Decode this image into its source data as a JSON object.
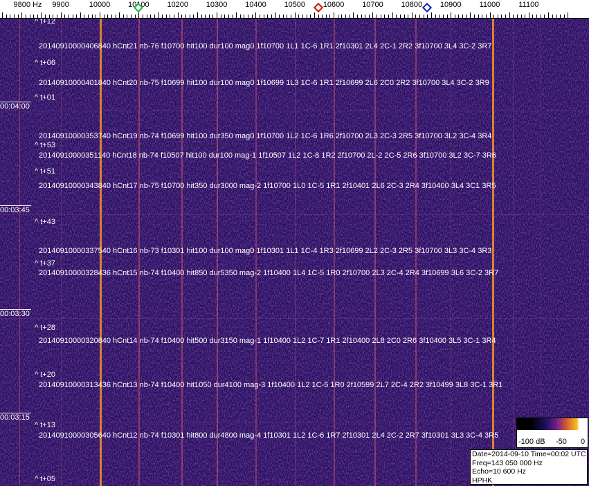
{
  "axis": {
    "unit_label": "9800 Hz",
    "ticks": [
      "9900",
      "10000",
      "10100",
      "10200",
      "10300",
      "10400",
      "10500",
      "10600",
      "10700",
      "10800",
      "10900",
      "11000",
      "11100"
    ],
    "markers": [
      {
        "freq": 10100,
        "color": "#22b14c"
      },
      {
        "freq": 10560,
        "color": "#d01010"
      },
      {
        "freq": 10840,
        "color": "#1020c0"
      }
    ]
  },
  "time_labels": [
    "00:04:00",
    "00:03:45",
    "00:03:30",
    "00:03:15"
  ],
  "t_marks": [
    "^ t+12",
    "^ t+06",
    "^ t+01",
    "^ t+53",
    "^ t+51",
    "^ t+43",
    "^ t+37",
    "^ t+28",
    "^ t+20",
    "^ t+13",
    "^ t+05"
  ],
  "events": [
    "20140910000406840 hCnt21 nb-76 f10700 hit100 dur100 mag0 1f10700 1L1 1C-6 1R1 2f10301 2L4 2C-1 2R2 3f10700 3L4 3C-2 3R7",
    "20140910000401840 hCnt20 nb-75 f10699 hit100 dur100 mag0 1f10699 1L3 1C-6 1R1 2f10699 2L6 2C0 2R2 3f10700 3L4 3C-2 3R9",
    "20140910000353740 hCnt19 nb-74 f10699 hit100 dur350 mag0 1f10700 1L2 1C-6 1R6 2f10700 2L3 2C-3 2R5 3f10700 3L2 3C-4 3R4",
    "20140910000351140 hCnt18 nb-74 f10507 hit100 dur100 mag-1 1f10507 1L2 1C-8 1R2 2f10700 2L-2 2C-5 2R6 3f10700 3L2 3C-7 3R6",
    "20140910000343840 hCnt17 nb-75 f10700 hit350 dur3000 mag-2 1f10700 1L0 1C-5 1R1 2f10401 2L6 2C-3 2R4 3f10400 3L4 3C1 3R5",
    "20140910000337540 hCnt16 nb-73 f10301 hit100 dur100 mag0 1f10301 1L1 1C-4 1R3 2f10699 2L2 2C-3 2R5 3f10700 3L3 3C-4 3R3",
    "20140910000328436 hCnt15 nb-74 f10400 hit850 dur5350 mag-2 1f10400 1L4 1C-5 1R0 2f10700 2L3 2C-4 2R4 3f10699 3L6 3C-2 3R7",
    "20140910000320840 hCnt14 nb-74 f10400 hit500 dur3150 mag-1 1f10400 1L2 1C-7 1R1 2f10400 2L8 2C0 2R6 3f10400 3L5 3C-1 3R4",
    "20140910000313436 hCnt13 nb-74 f10400 hit1050 dur4100 mag-3 1f10400 1L2 1C-5 1R0 2f10599 2L7 2C-4 2R2 3f10499 3L8 3C-1 3R1",
    "20140910000305640 hCnt12 nb-74 f10301 hit800 dur4800 mag-4 1f10301 1L2 1C-6 1R7 2f10301 2L4 2C-2 2R7 3f10301 3L3 3C-4 3R5"
  ],
  "colorbar": {
    "labels": [
      "-100 dB",
      "-50",
      "0"
    ]
  },
  "info": {
    "date_time": "Date=2014-09-10 Time=00:02 UTC",
    "freq": "Freq=143 050 000 Hz",
    "echo": "Echo=10 600 Hz",
    "station": "HPHK"
  }
}
